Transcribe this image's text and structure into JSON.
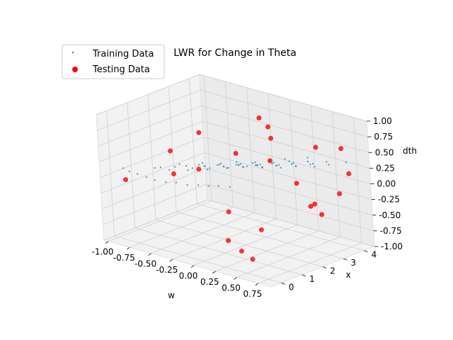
{
  "chart_data": {
    "type": "scatter",
    "projection": "3d",
    "title": "LWR for Change in Theta",
    "axes": {
      "x": {
        "label": "w",
        "range": [
          -1.05,
          0.9
        ],
        "ticks": [
          "-1.00",
          "-0.75",
          "-0.50",
          "-0.25",
          "0.00",
          "0.25",
          "0.50",
          "0.75"
        ],
        "tick_values": [
          -1.0,
          -0.75,
          -0.5,
          -0.25,
          0.0,
          0.25,
          0.5,
          0.75
        ]
      },
      "y": {
        "label": "x",
        "range": [
          -0.5,
          4.5
        ],
        "ticks": [
          "0",
          "1",
          "2",
          "3",
          "4"
        ],
        "tick_values": [
          0,
          1,
          2,
          3,
          4
        ]
      },
      "z": {
        "label": "dth",
        "range": [
          -1.0,
          1.0
        ],
        "ticks": [
          "-1.00",
          "-0.75",
          "-0.50",
          "-0.25",
          "0.00",
          "0.25",
          "0.50",
          "0.75",
          "1.00"
        ],
        "tick_values": [
          -1.0,
          -0.75,
          -0.5,
          -0.25,
          0.0,
          0.25,
          0.5,
          0.75,
          1.0
        ]
      }
    },
    "grid": true,
    "legend": {
      "placement": "top-left"
    },
    "series": [
      {
        "name": "Training Data",
        "color": "#1f77b4",
        "marker": "point",
        "points": [
          [
            -0.92,
            0.1,
            0.12
          ],
          [
            -0.9,
            0.3,
            0.05
          ],
          [
            -0.88,
            0.6,
            -0.02
          ],
          [
            -0.85,
            0.9,
            -0.1
          ],
          [
            -0.83,
            1.2,
            -0.18
          ],
          [
            -0.8,
            1.6,
            -0.25
          ],
          [
            -0.78,
            2.0,
            -0.3
          ],
          [
            -0.75,
            2.4,
            -0.38
          ],
          [
            -0.72,
            2.8,
            -0.42
          ],
          [
            -0.7,
            3.2,
            -0.48
          ],
          [
            -0.68,
            3.6,
            -0.52
          ],
          [
            -0.65,
            4.0,
            -0.58
          ],
          [
            -0.62,
            0.4,
            0.2
          ],
          [
            -0.6,
            1.0,
            0.1
          ],
          [
            -0.58,
            1.8,
            0.0
          ],
          [
            -0.55,
            2.6,
            -0.08
          ],
          [
            -0.52,
            3.4,
            -0.15
          ],
          [
            -0.5,
            0.2,
            0.28
          ],
          [
            -0.48,
            0.8,
            0.22
          ],
          [
            -0.45,
            1.5,
            0.12
          ],
          [
            -0.42,
            2.2,
            0.04
          ],
          [
            -0.4,
            3.0,
            -0.05
          ],
          [
            -0.38,
            3.8,
            -0.12
          ],
          [
            -0.35,
            0.5,
            0.35
          ],
          [
            -0.32,
            1.3,
            0.25
          ],
          [
            -0.3,
            2.1,
            0.15
          ],
          [
            -0.28,
            2.9,
            0.06
          ],
          [
            -0.25,
            3.7,
            -0.04
          ],
          [
            -0.22,
            0.3,
            0.4
          ],
          [
            -0.2,
            1.1,
            0.3
          ],
          [
            -0.18,
            1.9,
            0.2
          ],
          [
            -0.15,
            2.7,
            0.1
          ],
          [
            -0.12,
            3.5,
            0.0
          ],
          [
            -0.1,
            0.6,
            0.45
          ],
          [
            -0.08,
            1.4,
            0.35
          ],
          [
            -0.05,
            2.2,
            0.25
          ],
          [
            -0.02,
            3.0,
            0.15
          ],
          [
            0.0,
            3.8,
            0.05
          ],
          [
            0.02,
            0.2,
            0.5
          ],
          [
            0.05,
            1.0,
            0.4
          ],
          [
            0.08,
            1.8,
            0.3
          ],
          [
            0.1,
            2.6,
            0.2
          ],
          [
            0.12,
            3.4,
            0.1
          ],
          [
            0.15,
            0.4,
            0.55
          ],
          [
            0.18,
            1.2,
            0.45
          ],
          [
            0.2,
            2.0,
            0.35
          ],
          [
            0.22,
            2.8,
            0.25
          ],
          [
            0.25,
            3.6,
            0.15
          ],
          [
            0.28,
            0.7,
            0.6
          ],
          [
            0.3,
            1.5,
            0.5
          ],
          [
            0.32,
            2.3,
            0.4
          ],
          [
            0.35,
            3.1,
            0.3
          ],
          [
            0.38,
            3.9,
            0.2
          ],
          [
            0.4,
            0.3,
            0.65
          ],
          [
            0.42,
            1.1,
            0.55
          ],
          [
            0.45,
            1.9,
            0.45
          ],
          [
            0.48,
            2.7,
            0.35
          ],
          [
            0.5,
            3.5,
            0.25
          ],
          [
            0.52,
            0.5,
            0.7
          ],
          [
            0.55,
            1.3,
            0.6
          ],
          [
            0.58,
            2.1,
            0.5
          ],
          [
            0.6,
            2.9,
            0.4
          ],
          [
            0.62,
            3.7,
            0.3
          ],
          [
            0.65,
            0.8,
            0.75
          ],
          [
            0.68,
            1.6,
            0.65
          ],
          [
            0.7,
            2.4,
            0.55
          ],
          [
            0.72,
            3.2,
            0.45
          ],
          [
            0.75,
            4.0,
            0.35
          ],
          [
            0.78,
            1.0,
            0.8
          ],
          [
            0.8,
            2.0,
            0.7
          ]
        ]
      },
      {
        "name": "Testing Data",
        "color": "#ff0000",
        "marker": "circle",
        "points": [
          [
            -0.95,
            0.3,
            -0.1
          ],
          [
            -0.7,
            1.5,
            0.3
          ],
          [
            -0.6,
            2.5,
            0.5
          ],
          [
            -0.5,
            0.8,
            0.1
          ],
          [
            -0.3,
            1.2,
            0.2
          ],
          [
            -0.1,
            2.2,
            0.4
          ],
          [
            0.0,
            3.0,
            0.9
          ],
          [
            0.05,
            3.2,
            0.75
          ],
          [
            0.1,
            3.1,
            0.6
          ],
          [
            0.15,
            2.8,
            0.3
          ],
          [
            0.2,
            0.5,
            -0.2
          ],
          [
            0.25,
            0.2,
            -0.6
          ],
          [
            0.3,
            0.6,
            -0.8
          ],
          [
            0.35,
            0.9,
            -0.95
          ],
          [
            0.4,
            1.2,
            -0.5
          ],
          [
            0.45,
            3.8,
            0.5
          ],
          [
            0.5,
            2.6,
            0.1
          ],
          [
            0.55,
            3.0,
            -0.3
          ],
          [
            0.6,
            3.3,
            -0.45
          ],
          [
            0.65,
            2.8,
            -0.2
          ],
          [
            0.7,
            4.0,
            0.55
          ],
          [
            0.75,
            3.6,
            -0.1
          ],
          [
            0.8,
            3.9,
            0.2
          ]
        ]
      }
    ]
  }
}
